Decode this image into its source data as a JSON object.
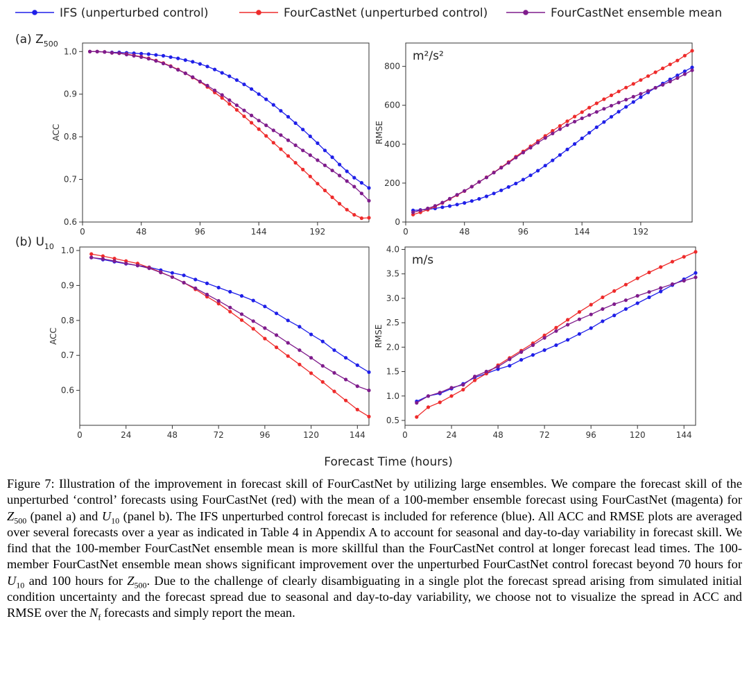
{
  "legend": {
    "entries": [
      {
        "label": "IFS (unperturbed control)",
        "color": "#1f1fe8"
      },
      {
        "label": "FourCastNet (unperturbed control)",
        "color": "#ee2b2b"
      },
      {
        "label": "FourCastNet ensemble mean",
        "color": "#7f1c8c"
      }
    ]
  },
  "xlabel_common": "Forecast Time (hours)",
  "caption": {
    "t1": "Figure 7: Illustration of the improvement in forecast skill of FourCastNet by utilizing large ensembles. We compare the forecast skill of the unperturbed ‘control’ forecasts using FourCastNet (red) with the mean of a 100-member ensemble forecast using FourCastNet (magenta) for ",
    "var_z": "Z",
    "var_z_sub": "500",
    "t2": " (panel a) and ",
    "var_u": "U",
    "var_u_sub": "10",
    "t3": " (panel b). The IFS unperturbed control forecast is included for reference (blue). All ACC and RMSE plots are averaged over several forecasts over a year as indicated in Table 4 in Appendix A to account for seasonal and day-to-day variability in forecast skill. We find that the 100-member FourCastNet ensemble mean is more skillful than the FourCastNet control at longer forecast lead times. The 100-member FourCastNet ensemble mean shows significant improvement over the unperturbed FourCastNet control forecast beyond 70 hours for ",
    "t4": " and 100 hours for ",
    "t5": ". Due to the challenge of clearly disambiguating in a single plot the forecast spread arising from simulated initial condition uncertainty and the forecast spread due to seasonal and day-to-day variability, we choose not to visualize the spread in ACC and RMSE over the ",
    "var_n": "N",
    "var_n_sub": "f",
    "t6": " forecasts and simply report the mean."
  },
  "chart_data": [
    {
      "type": "line",
      "panel_label": "(a) Z",
      "panel_label_sub": "500",
      "title": "",
      "xlabel": "",
      "ylabel": "ACC",
      "unit_label": "",
      "xlim": [
        0,
        234
      ],
      "ylim": [
        0.6,
        1.02
      ],
      "xticks": [
        0,
        48,
        96,
        144,
        192
      ],
      "yticks": [
        0.6,
        0.7,
        0.8,
        0.9,
        1.0
      ],
      "ytick_labels": [
        "0.6",
        "0.7",
        "0.8",
        "0.9",
        "1.0"
      ],
      "x": [
        6,
        12,
        18,
        24,
        30,
        36,
        42,
        48,
        54,
        60,
        66,
        72,
        78,
        84,
        90,
        96,
        102,
        108,
        114,
        120,
        126,
        132,
        138,
        144,
        150,
        156,
        162,
        168,
        174,
        180,
        186,
        192,
        198,
        204,
        210,
        216,
        222,
        228,
        234
      ],
      "series": [
        {
          "name": "IFS (unperturbed control)",
          "color": "#1f1fe8",
          "values": [
            1.0,
            1.0,
            0.999,
            0.998,
            0.998,
            0.997,
            0.996,
            0.995,
            0.994,
            0.992,
            0.99,
            0.987,
            0.984,
            0.98,
            0.976,
            0.971,
            0.965,
            0.958,
            0.95,
            0.942,
            0.933,
            0.923,
            0.912,
            0.9,
            0.888,
            0.875,
            0.861,
            0.847,
            0.832,
            0.817,
            0.801,
            0.785,
            0.768,
            0.752,
            0.735,
            0.719,
            0.704,
            0.692,
            0.68
          ]
        },
        {
          "name": "FourCastNet (unperturbed control)",
          "color": "#ee2b2b",
          "values": [
            1.0,
            1.0,
            0.999,
            0.997,
            0.996,
            0.994,
            0.991,
            0.988,
            0.984,
            0.979,
            0.973,
            0.966,
            0.958,
            0.949,
            0.939,
            0.929,
            0.917,
            0.904,
            0.891,
            0.877,
            0.863,
            0.848,
            0.833,
            0.818,
            0.802,
            0.786,
            0.771,
            0.755,
            0.739,
            0.723,
            0.707,
            0.69,
            0.674,
            0.658,
            0.643,
            0.629,
            0.617,
            0.609,
            0.61
          ]
        },
        {
          "name": "FourCastNet ensemble mean",
          "color": "#7f1c8c",
          "values": [
            1.0,
            1.0,
            0.999,
            0.997,
            0.996,
            0.993,
            0.99,
            0.987,
            0.983,
            0.978,
            0.972,
            0.965,
            0.957,
            0.949,
            0.94,
            0.93,
            0.92,
            0.909,
            0.898,
            0.886,
            0.874,
            0.862,
            0.85,
            0.838,
            0.827,
            0.815,
            0.804,
            0.792,
            0.78,
            0.768,
            0.757,
            0.745,
            0.733,
            0.721,
            0.709,
            0.696,
            0.683,
            0.667,
            0.65
          ]
        }
      ]
    },
    {
      "type": "line",
      "panel_label": "",
      "panel_label_sub": "",
      "title": "",
      "xlabel": "",
      "ylabel": "RMSE",
      "unit_label": "m²/s²",
      "xlim": [
        0,
        234
      ],
      "ylim": [
        0,
        920
      ],
      "xticks": [
        0,
        48,
        96,
        144,
        192
      ],
      "yticks": [
        0,
        200,
        400,
        600,
        800
      ],
      "ytick_labels": [
        "0",
        "200",
        "400",
        "600",
        "800"
      ],
      "x": [
        6,
        12,
        18,
        24,
        30,
        36,
        42,
        48,
        54,
        60,
        66,
        72,
        78,
        84,
        90,
        96,
        102,
        108,
        114,
        120,
        126,
        132,
        138,
        144,
        150,
        156,
        162,
        168,
        174,
        180,
        186,
        192,
        198,
        204,
        210,
        216,
        222,
        228,
        234
      ],
      "series": [
        {
          "name": "IFS (unperturbed control)",
          "color": "#1f1fe8",
          "values": [
            60,
            62,
            65,
            70,
            76,
            82,
            90,
            98,
            108,
            119,
            132,
            147,
            163,
            180,
            198,
            218,
            240,
            264,
            290,
            317,
            345,
            373,
            401,
            430,
            459,
            487,
            514,
            541,
            567,
            592,
            617,
            642,
            666,
            690,
            712,
            733,
            754,
            775,
            795
          ]
        },
        {
          "name": "FourCastNet (unperturbed control)",
          "color": "#ee2b2b",
          "values": [
            38,
            50,
            63,
            80,
            98,
            118,
            138,
            159,
            182,
            206,
            230,
            255,
            281,
            308,
            336,
            363,
            389,
            416,
            443,
            469,
            494,
            518,
            542,
            565,
            588,
            610,
            631,
            651,
            671,
            691,
            710,
            730,
            750,
            770,
            790,
            810,
            830,
            855,
            880
          ]
        },
        {
          "name": "FourCastNet ensemble mean",
          "color": "#7f1c8c",
          "values": [
            50,
            60,
            70,
            83,
            100,
            120,
            140,
            160,
            182,
            206,
            229,
            254,
            279,
            304,
            331,
            357,
            382,
            408,
            432,
            455,
            477,
            498,
            516,
            533,
            550,
            566,
            582,
            598,
            614,
            629,
            644,
            659,
            674,
            690,
            705,
            722,
            740,
            760,
            780
          ]
        }
      ]
    },
    {
      "type": "line",
      "panel_label": "(b) U",
      "panel_label_sub": "10",
      "title": "",
      "xlabel": "",
      "ylabel": "ACC",
      "unit_label": "",
      "xlim": [
        0,
        150
      ],
      "ylim": [
        0.5,
        1.01
      ],
      "xticks": [
        0,
        24,
        48,
        72,
        96,
        120,
        144
      ],
      "yticks": [
        0.6,
        0.7,
        0.8,
        0.9,
        1.0
      ],
      "ytick_labels": [
        "0.6",
        "0.7",
        "0.8",
        "0.9",
        "1.0"
      ],
      "x": [
        6,
        12,
        18,
        24,
        30,
        36,
        42,
        48,
        54,
        60,
        66,
        72,
        78,
        84,
        90,
        96,
        102,
        108,
        114,
        120,
        126,
        132,
        138,
        144,
        150
      ],
      "series": [
        {
          "name": "IFS (unperturbed control)",
          "color": "#1f1fe8",
          "values": [
            0.98,
            0.974,
            0.968,
            0.962,
            0.957,
            0.952,
            0.944,
            0.936,
            0.929,
            0.917,
            0.906,
            0.894,
            0.882,
            0.87,
            0.857,
            0.84,
            0.82,
            0.8,
            0.782,
            0.76,
            0.74,
            0.715,
            0.693,
            0.672,
            0.652
          ]
        },
        {
          "name": "FourCastNet (unperturbed control)",
          "color": "#ee2b2b",
          "values": [
            0.99,
            0.984,
            0.977,
            0.97,
            0.963,
            0.951,
            0.938,
            0.924,
            0.908,
            0.889,
            0.868,
            0.848,
            0.825,
            0.801,
            0.776,
            0.748,
            0.723,
            0.698,
            0.674,
            0.649,
            0.624,
            0.597,
            0.571,
            0.545,
            0.525
          ]
        },
        {
          "name": "FourCastNet ensemble mean",
          "color": "#7f1c8c",
          "values": [
            0.98,
            0.976,
            0.97,
            0.963,
            0.957,
            0.949,
            0.937,
            0.924,
            0.908,
            0.892,
            0.874,
            0.856,
            0.837,
            0.818,
            0.798,
            0.778,
            0.758,
            0.736,
            0.715,
            0.693,
            0.67,
            0.65,
            0.631,
            0.612,
            0.6
          ]
        }
      ]
    },
    {
      "type": "line",
      "panel_label": "",
      "panel_label_sub": "",
      "title": "",
      "xlabel": "",
      "ylabel": "RMSE",
      "unit_label": "m/s",
      "xlim": [
        0,
        150
      ],
      "ylim": [
        0.4,
        4.05
      ],
      "xticks": [
        0,
        24,
        48,
        72,
        96,
        120,
        144
      ],
      "yticks": [
        0.5,
        1.0,
        1.5,
        2.0,
        2.5,
        3.0,
        3.5,
        4.0
      ],
      "ytick_labels": [
        "0.5",
        "1.0",
        "1.5",
        "2.0",
        "2.5",
        "3.0",
        "3.5",
        "4.0"
      ],
      "x": [
        6,
        12,
        18,
        24,
        30,
        36,
        42,
        48,
        54,
        60,
        66,
        72,
        78,
        84,
        90,
        96,
        102,
        108,
        114,
        120,
        126,
        132,
        138,
        144,
        150
      ],
      "series": [
        {
          "name": "IFS (unperturbed control)",
          "color": "#1f1fe8",
          "values": [
            0.89,
            1.0,
            1.05,
            1.15,
            1.25,
            1.38,
            1.46,
            1.55,
            1.62,
            1.74,
            1.84,
            1.94,
            2.04,
            2.15,
            2.27,
            2.39,
            2.53,
            2.65,
            2.78,
            2.9,
            3.02,
            3.14,
            3.27,
            3.39,
            3.52
          ]
        },
        {
          "name": "FourCastNet (unperturbed control)",
          "color": "#ee2b2b",
          "values": [
            0.57,
            0.77,
            0.87,
            1.0,
            1.13,
            1.32,
            1.46,
            1.63,
            1.78,
            1.93,
            2.08,
            2.24,
            2.4,
            2.56,
            2.72,
            2.87,
            3.02,
            3.15,
            3.28,
            3.41,
            3.53,
            3.64,
            3.75,
            3.85,
            3.95
          ]
        },
        {
          "name": "FourCastNet ensemble mean",
          "color": "#7f1c8c",
          "values": [
            0.86,
            1.0,
            1.07,
            1.17,
            1.23,
            1.4,
            1.5,
            1.6,
            1.75,
            1.9,
            2.04,
            2.19,
            2.33,
            2.46,
            2.57,
            2.67,
            2.78,
            2.88,
            2.96,
            3.05,
            3.13,
            3.21,
            3.29,
            3.36,
            3.43
          ]
        }
      ]
    }
  ]
}
